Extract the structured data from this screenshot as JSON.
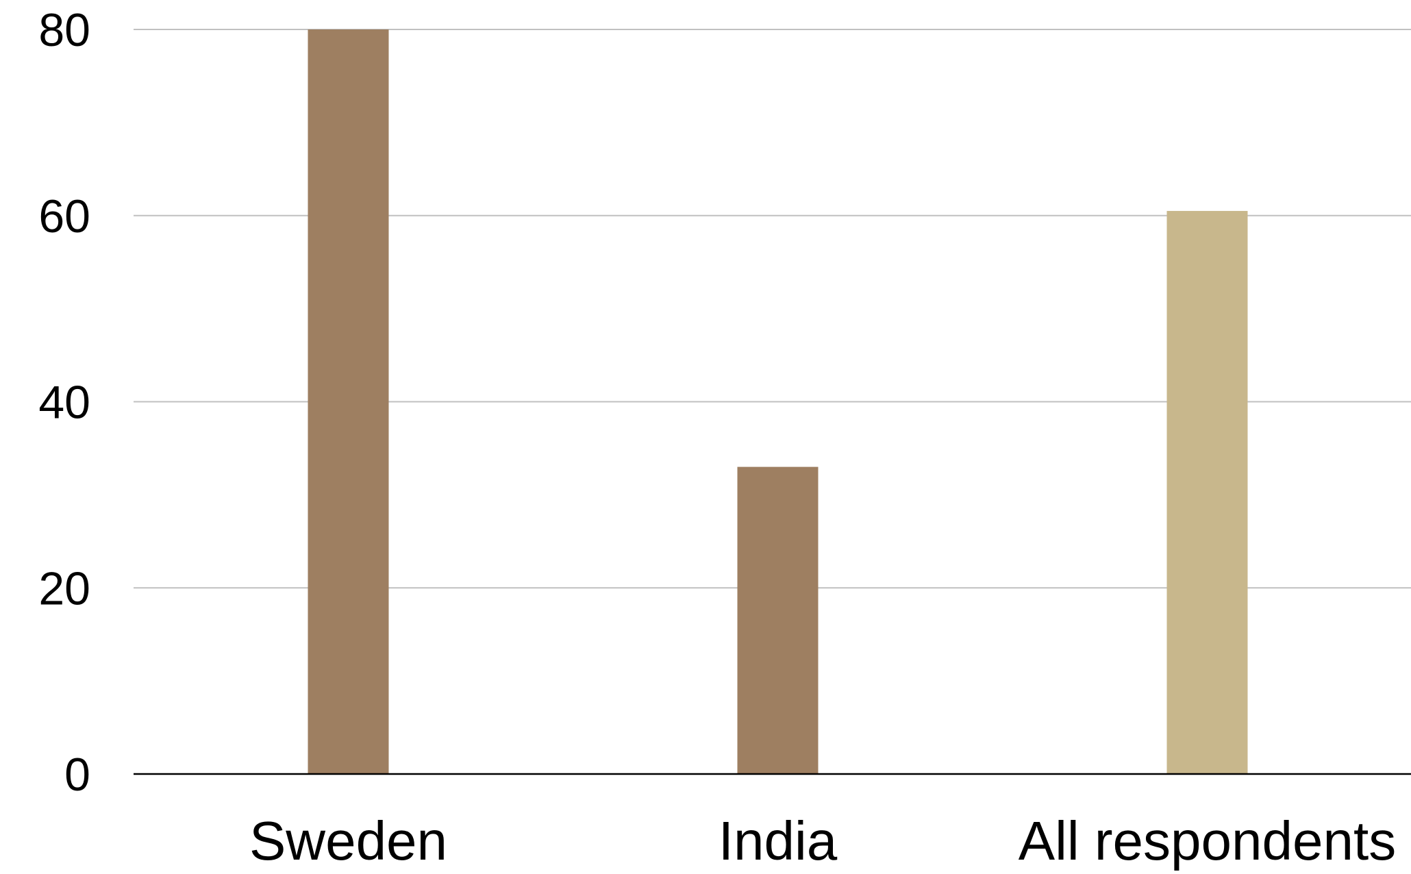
{
  "chart_data": {
    "type": "bar",
    "title": "",
    "xlabel": "",
    "ylabel": "",
    "categories": [
      "Sweden",
      "India",
      "All respondents"
    ],
    "values": [
      80,
      33,
      60.5
    ],
    "ylim": [
      0,
      80
    ],
    "yticks": [
      "0",
      "20",
      "40",
      "60",
      "80"
    ],
    "grid": true,
    "legend": "none",
    "colors": {
      "bars": [
        "#9e7f61",
        "#9e7f61",
        "#c8b78c"
      ],
      "grid": "#c0c0c0",
      "axis": "#000000",
      "text": "#000000"
    }
  }
}
